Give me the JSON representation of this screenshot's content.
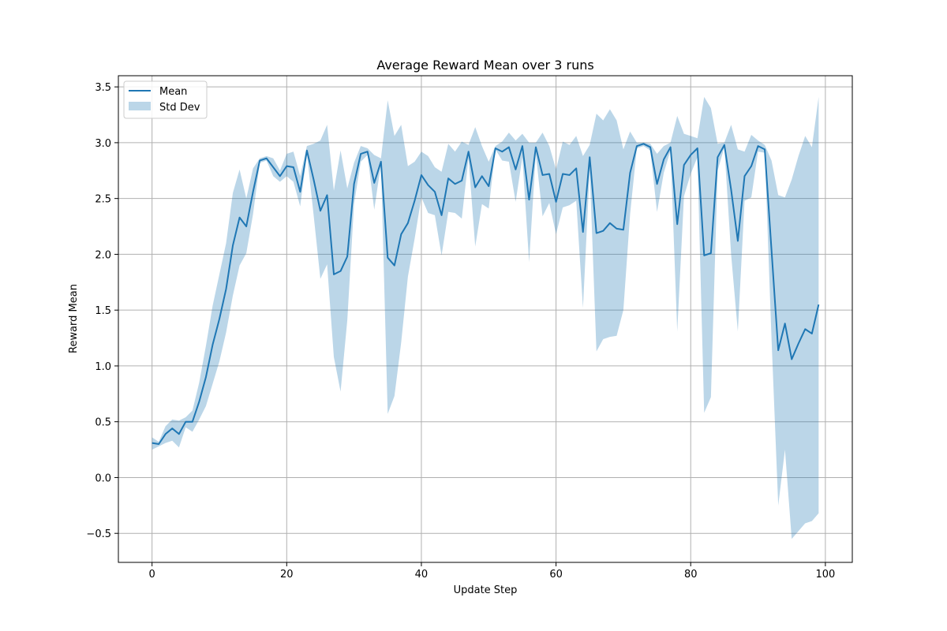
{
  "chart_data": {
    "type": "line",
    "title": "Average Reward Mean over 3 runs",
    "xlabel": "Update Step",
    "ylabel": "Reward Mean",
    "xlim": [
      -5,
      104
    ],
    "ylim": [
      -0.76,
      3.6
    ],
    "xticks": [
      0,
      20,
      40,
      60,
      80,
      100
    ],
    "yticks": [
      -0.5,
      0.0,
      0.5,
      1.0,
      1.5,
      2.0,
      2.5,
      3.0,
      3.5
    ],
    "ytick_labels": [
      "−0.5",
      "0.0",
      "0.5",
      "1.0",
      "1.5",
      "2.0",
      "2.5",
      "3.0",
      "3.5"
    ],
    "grid": true,
    "legend_position": "upper-left",
    "colors": {
      "mean": "#1f77b4",
      "band": "#1f77b4",
      "band_opacity": 0.3,
      "grid": "#b0b0b0"
    },
    "series": [
      {
        "name": "Mean",
        "kind": "line",
        "x_start": 0,
        "x_step": 1,
        "values": [
          0.31,
          0.3,
          0.39,
          0.44,
          0.39,
          0.5,
          0.5,
          0.68,
          0.9,
          1.19,
          1.42,
          1.69,
          2.08,
          2.33,
          2.25,
          2.56,
          2.84,
          2.86,
          2.78,
          2.7,
          2.79,
          2.78,
          2.56,
          2.93,
          2.67,
          2.39,
          2.53,
          1.82,
          1.85,
          1.98,
          2.63,
          2.9,
          2.92,
          2.64,
          2.83,
          1.97,
          1.9,
          2.18,
          2.28,
          2.48,
          2.71,
          2.62,
          2.56,
          2.35,
          2.68,
          2.63,
          2.66,
          2.92,
          2.6,
          2.7,
          2.61,
          2.95,
          2.92,
          2.96,
          2.76,
          2.97,
          2.49,
          2.96,
          2.71,
          2.72,
          2.47,
          2.72,
          2.71,
          2.77,
          2.2,
          2.87,
          2.19,
          2.21,
          2.28,
          2.23,
          2.22,
          2.73,
          2.97,
          2.99,
          2.96,
          2.63,
          2.85,
          2.96,
          2.27,
          2.8,
          2.89,
          2.95,
          1.99,
          2.01,
          2.87,
          2.98,
          2.58,
          2.12,
          2.7,
          2.79,
          2.97,
          2.94,
          2.04,
          1.14,
          1.38,
          1.06,
          1.2,
          1.33,
          1.29,
          1.55
        ]
      },
      {
        "name": "Std Dev",
        "kind": "band",
        "x_start": 0,
        "x_step": 1,
        "upper": [
          0.36,
          0.32,
          0.46,
          0.52,
          0.51,
          0.54,
          0.6,
          0.85,
          1.18,
          1.54,
          1.82,
          2.1,
          2.55,
          2.76,
          2.5,
          2.77,
          2.86,
          2.88,
          2.86,
          2.75,
          2.9,
          2.92,
          2.7,
          2.97,
          2.99,
          3.02,
          3.16,
          2.57,
          2.93,
          2.59,
          2.82,
          2.97,
          2.95,
          2.89,
          2.86,
          3.38,
          3.06,
          3.16,
          2.79,
          2.83,
          2.92,
          2.88,
          2.78,
          2.74,
          2.99,
          2.92,
          3.01,
          2.98,
          3.14,
          2.97,
          2.83,
          2.97,
          3.01,
          3.09,
          3.02,
          3.08,
          3.0,
          3.0,
          3.09,
          2.97,
          2.76,
          3.01,
          2.98,
          3.06,
          2.88,
          2.98,
          3.26,
          3.2,
          3.3,
          3.2,
          2.94,
          3.1,
          3.0,
          3.0,
          2.99,
          2.9,
          2.97,
          3.0,
          3.24,
          3.08,
          3.06,
          3.04,
          3.41,
          3.31,
          2.99,
          3.0,
          3.16,
          2.94,
          2.92,
          3.07,
          3.02,
          2.98,
          2.84,
          2.53,
          2.51,
          2.67,
          2.88,
          3.06,
          2.96,
          3.41
        ],
        "lower": [
          0.25,
          0.28,
          0.31,
          0.33,
          0.27,
          0.45,
          0.41,
          0.52,
          0.64,
          0.84,
          1.04,
          1.3,
          1.63,
          1.9,
          2.01,
          2.36,
          2.82,
          2.84,
          2.7,
          2.65,
          2.7,
          2.65,
          2.43,
          2.9,
          2.35,
          1.78,
          1.91,
          1.08,
          0.77,
          1.41,
          2.45,
          2.83,
          2.89,
          2.4,
          2.81,
          0.57,
          0.73,
          1.21,
          1.8,
          2.14,
          2.51,
          2.37,
          2.35,
          1.99,
          2.38,
          2.37,
          2.32,
          2.86,
          2.07,
          2.45,
          2.41,
          2.94,
          2.84,
          2.83,
          2.47,
          2.87,
          1.93,
          2.9,
          2.34,
          2.46,
          2.18,
          2.42,
          2.44,
          2.48,
          1.52,
          2.76,
          1.13,
          1.24,
          1.26,
          1.27,
          1.5,
          2.36,
          2.95,
          2.97,
          2.93,
          2.38,
          2.73,
          2.93,
          1.31,
          2.52,
          2.72,
          2.87,
          0.58,
          0.72,
          2.75,
          2.96,
          2.0,
          1.31,
          2.48,
          2.51,
          2.92,
          2.91,
          1.25,
          -0.25,
          0.25,
          -0.55,
          -0.48,
          -0.41,
          -0.39,
          -0.32
        ]
      }
    ]
  }
}
